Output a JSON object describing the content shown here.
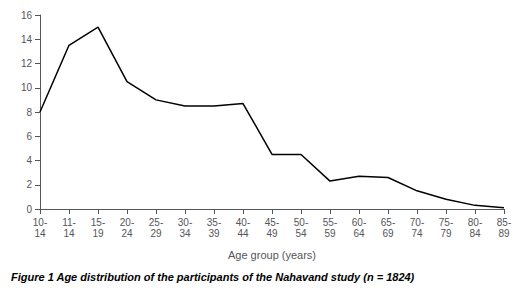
{
  "chart_data": {
    "type": "line",
    "title": "Figure 1 Age distribution of the participants of the Nahavand study (n = 1824)",
    "x_label": "Age group (years)",
    "categories": [
      "10-\n14",
      "11-\n14",
      "15-\n19",
      "20-\n24",
      "25-\n29",
      "30-\n34",
      "35-\n39",
      "40-\n44",
      "45-\n49",
      "50-\n54",
      "55-\n59",
      "60-\n64",
      "65-\n69",
      "70-\n74",
      "75-\n79",
      "80-\n84",
      "85-\n89"
    ],
    "values": [
      8.0,
      13.5,
      15.0,
      10.5,
      9.0,
      8.5,
      8.5,
      8.7,
      4.5,
      4.5,
      2.3,
      2.7,
      2.6,
      1.5,
      0.8,
      0.3,
      0.1
    ],
    "color": "#000000",
    "ylim": [
      0,
      16
    ],
    "yticks": [
      0,
      2,
      4,
      6,
      8,
      10,
      12,
      14,
      16
    ],
    "grid": false
  }
}
